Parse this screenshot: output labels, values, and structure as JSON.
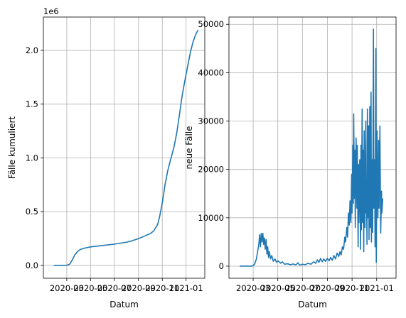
{
  "chart_data": [
    {
      "type": "line",
      "xlabel": "Datum",
      "ylabel": "Fälle kumuliert",
      "offset_label": "1e6",
      "xlim": [
        "2020-01-01",
        "2021-02-18"
      ],
      "ylim": [
        -0.12,
        2.31
      ],
      "grid": true,
      "xticks": [
        "2020-03",
        "2020-05",
        "2020-07",
        "2020-09",
        "2020-11",
        "2021-01"
      ],
      "yticks": [
        0.0,
        0.5,
        1.0,
        1.5,
        2.0
      ],
      "ytick_labels": [
        "0.0",
        "0.5",
        "1.0",
        "1.5",
        "2.0"
      ],
      "series": [
        {
          "color": "#1f77b4",
          "points": [
            [
              "2020-01-28",
              0
            ],
            [
              "2020-02-25",
              0.0
            ],
            [
              "2020-03-01",
              0.001
            ],
            [
              "2020-03-08",
              0.01
            ],
            [
              "2020-03-15",
              0.05
            ],
            [
              "2020-03-22",
              0.1
            ],
            [
              "2020-03-29",
              0.13
            ],
            [
              "2020-04-05",
              0.148
            ],
            [
              "2020-04-15",
              0.16
            ],
            [
              "2020-05-01",
              0.172
            ],
            [
              "2020-06-01",
              0.185
            ],
            [
              "2020-07-01",
              0.197
            ],
            [
              "2020-08-01",
              0.215
            ],
            [
              "2020-08-15",
              0.228
            ],
            [
              "2020-09-01",
              0.248
            ],
            [
              "2020-09-15",
              0.27
            ],
            [
              "2020-10-01",
              0.295
            ],
            [
              "2020-10-10",
              0.32
            ],
            [
              "2020-10-20",
              0.38
            ],
            [
              "2020-10-25",
              0.45
            ],
            [
              "2020-11-01",
              0.58
            ],
            [
              "2020-11-08",
              0.75
            ],
            [
              "2020-11-15",
              0.88
            ],
            [
              "2020-11-22",
              0.98
            ],
            [
              "2020-12-01",
              1.1
            ],
            [
              "2020-12-08",
              1.23
            ],
            [
              "2020-12-15",
              1.4
            ],
            [
              "2020-12-22",
              1.58
            ],
            [
              "2020-12-29",
              1.72
            ],
            [
              "2021-01-05",
              1.85
            ],
            [
              "2021-01-12",
              1.98
            ],
            [
              "2021-01-19",
              2.08
            ],
            [
              "2021-01-26",
              2.15
            ],
            [
              "2021-02-01",
              2.19
            ]
          ]
        }
      ]
    },
    {
      "type": "line",
      "xlabel": "Datum",
      "ylabel": "neue Fälle",
      "xlim": [
        "2020-01-01",
        "2021-02-18"
      ],
      "ylim": [
        -2500,
        51500
      ],
      "grid": true,
      "xticks": [
        "2020-03",
        "2020-05",
        "2020-07",
        "2020-09",
        "2020-11",
        "2021-01"
      ],
      "yticks": [
        0,
        10000,
        20000,
        30000,
        40000,
        50000
      ],
      "ytick_labels": [
        "0",
        "10000",
        "20000",
        "30000",
        "40000",
        "50000"
      ],
      "series": [
        {
          "color": "#1f77b4",
          "points": [
            [
              "2020-01-28",
              0
            ],
            [
              "2020-02-25",
              0
            ],
            [
              "2020-03-01",
              100
            ],
            [
              "2020-03-05",
              500
            ],
            [
              "2020-03-09",
              1500
            ],
            [
              "2020-03-12",
              3000
            ],
            [
              "2020-03-15",
              4500
            ],
            [
              "2020-03-17",
              6500
            ],
            [
              "2020-03-19",
              4000
            ],
            [
              "2020-03-21",
              6800
            ],
            [
              "2020-03-23",
              5000
            ],
            [
              "2020-03-25",
              6800
            ],
            [
              "2020-03-27",
              4500
            ],
            [
              "2020-03-29",
              5800
            ],
            [
              "2020-03-31",
              3500
            ],
            [
              "2020-04-02",
              5500
            ],
            [
              "2020-04-04",
              2500
            ],
            [
              "2020-04-06",
              4000
            ],
            [
              "2020-04-08",
              1800
            ],
            [
              "2020-04-10",
              3000
            ],
            [
              "2020-04-13",
              1500
            ],
            [
              "2020-04-16",
              2200
            ],
            [
              "2020-04-20",
              1000
            ],
            [
              "2020-04-24",
              1500
            ],
            [
              "2020-04-28",
              800
            ],
            [
              "2020-05-02",
              1100
            ],
            [
              "2020-05-08",
              600
            ],
            [
              "2020-05-12",
              900
            ],
            [
              "2020-05-18",
              400
            ],
            [
              "2020-05-25",
              500
            ],
            [
              "2020-06-01",
              300
            ],
            [
              "2020-06-08",
              450
            ],
            [
              "2020-06-15",
              250
            ],
            [
              "2020-06-20",
              700
            ],
            [
              "2020-06-24",
              200
            ],
            [
              "2020-07-01",
              400
            ],
            [
              "2020-07-08",
              300
            ],
            [
              "2020-07-15",
              600
            ],
            [
              "2020-07-22",
              400
            ],
            [
              "2020-07-29",
              900
            ],
            [
              "2020-08-03",
              600
            ],
            [
              "2020-08-07",
              1300
            ],
            [
              "2020-08-11",
              800
            ],
            [
              "2020-08-15",
              1600
            ],
            [
              "2020-08-19",
              900
            ],
            [
              "2020-08-23",
              1500
            ],
            [
              "2020-08-27",
              1000
            ],
            [
              "2020-09-01",
              1600
            ],
            [
              "2020-09-05",
              1100
            ],
            [
              "2020-09-09",
              1800
            ],
            [
              "2020-09-13",
              1200
            ],
            [
              "2020-09-17",
              2200
            ],
            [
              "2020-09-21",
              1500
            ],
            [
              "2020-09-25",
              2700
            ],
            [
              "2020-09-29",
              2000
            ],
            [
              "2020-10-02",
              3000
            ],
            [
              "2020-10-05",
              2300
            ],
            [
              "2020-10-08",
              4000
            ],
            [
              "2020-10-11",
              3500
            ],
            [
              "2020-10-14",
              6000
            ],
            [
              "2020-10-16",
              5000
            ],
            [
              "2020-10-19",
              8000
            ],
            [
              "2020-10-21",
              6000
            ],
            [
              "2020-10-23",
              11000
            ],
            [
              "2020-10-25",
              8500
            ],
            [
              "2020-10-27",
              13500
            ],
            [
              "2020-10-29",
              9000
            ],
            [
              "2020-10-31",
              19000
            ],
            [
              "2020-11-01",
              11000
            ],
            [
              "2020-11-03",
              25000
            ],
            [
              "2020-11-04",
              13000
            ],
            [
              "2020-11-05",
              31500
            ],
            [
              "2020-11-07",
              14000
            ],
            [
              "2020-11-08",
              24000
            ],
            [
              "2020-11-09",
              8000
            ],
            [
              "2020-11-11",
              26500
            ],
            [
              "2020-11-13",
              12000
            ],
            [
              "2020-11-14",
              25000
            ],
            [
              "2020-11-16",
              4000
            ],
            [
              "2020-11-17",
              21000
            ],
            [
              "2020-11-18",
              9000
            ],
            [
              "2020-11-20",
              22000
            ],
            [
              "2020-11-22",
              3500
            ],
            [
              "2020-11-23",
              25000
            ],
            [
              "2020-11-24",
              7500
            ],
            [
              "2020-11-26",
              32500
            ],
            [
              "2020-11-27",
              9000
            ],
            [
              "2020-11-28",
              24000
            ],
            [
              "2020-11-30",
              3000
            ],
            [
              "2020-12-01",
              28000
            ],
            [
              "2020-12-03",
              8000
            ],
            [
              "2020-12-05",
              30000
            ],
            [
              "2020-12-06",
              11000
            ],
            [
              "2020-12-07",
              15000
            ],
            [
              "2020-12-08",
              4500
            ],
            [
              "2020-12-09",
              32500
            ],
            [
              "2020-12-11",
              10000
            ],
            [
              "2020-12-12",
              29000
            ],
            [
              "2020-12-13",
              5500
            ],
            [
              "2020-12-15",
              33000
            ],
            [
              "2020-12-16",
              8000
            ],
            [
              "2020-12-18",
              36000
            ],
            [
              "2020-12-19",
              5000
            ],
            [
              "2020-12-21",
              22000
            ],
            [
              "2020-12-22",
              7000
            ],
            [
              "2020-12-24",
              49000
            ],
            [
              "2020-12-25",
              12000
            ],
            [
              "2020-12-27",
              22000
            ],
            [
              "2020-12-28",
              4000
            ],
            [
              "2020-12-30",
              45000
            ],
            [
              "2020-12-31",
              800
            ],
            [
              "2021-01-02",
              28000
            ],
            [
              "2021-01-04",
              10000
            ],
            [
              "2021-01-06",
              26000
            ],
            [
              "2021-01-07",
              12000
            ],
            [
              "2021-01-09",
              29000
            ],
            [
              "2021-01-11",
              6800
            ],
            [
              "2021-01-13",
              15500
            ],
            [
              "2021-01-14",
              11000
            ],
            [
              "2021-01-16",
              14000
            ]
          ]
        }
      ]
    }
  ]
}
